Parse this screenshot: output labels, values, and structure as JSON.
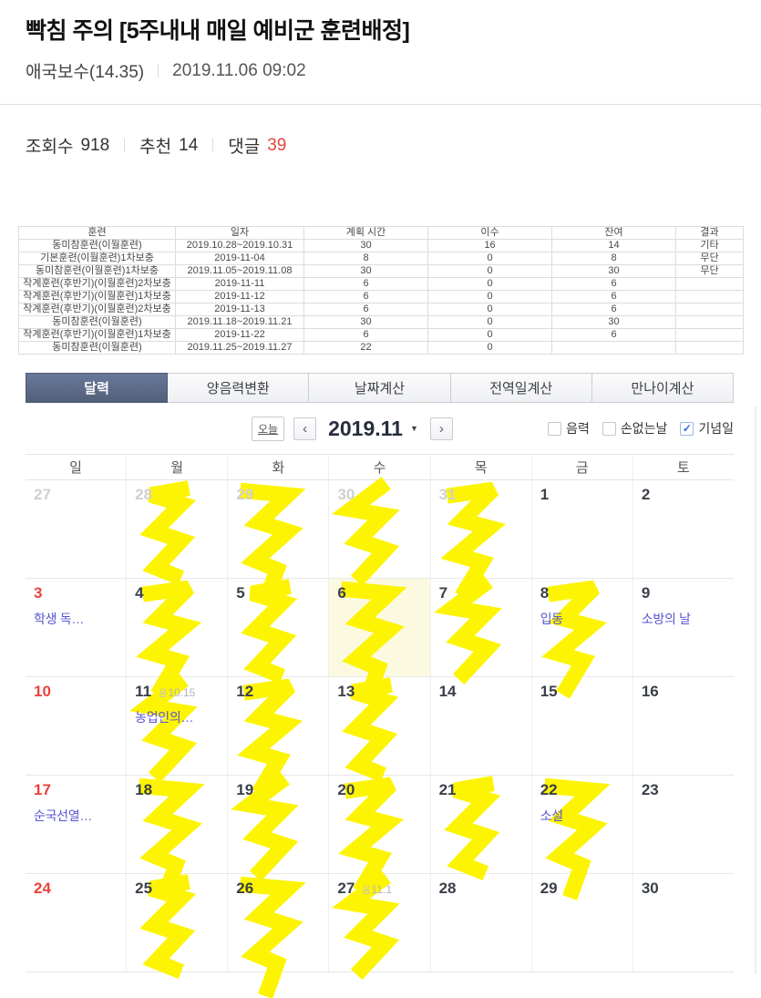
{
  "post": {
    "title": "빡침 주의 [5주내내 매일 예비군 훈련배정]",
    "author": "애국보수(14.35)",
    "timestamp": "2019.11.06 09:02",
    "views_label": "조회수",
    "views": "918",
    "likes_label": "추천",
    "likes": "14",
    "comments_label": "댓글",
    "comments": "39"
  },
  "training_table": {
    "headers": [
      "훈련",
      "일자",
      "계획 시간",
      "이수",
      "잔여",
      "결과"
    ],
    "rows": [
      [
        "동미참훈련(이월훈련)",
        "2019.10.28~2019.10.31",
        "30",
        "16",
        "14",
        "기타"
      ],
      [
        "기본훈련(이월훈련)1차보충",
        "2019-11-04",
        "8",
        "0",
        "8",
        "무단"
      ],
      [
        "동미참훈련(이월훈련)1차보충",
        "2019.11.05~2019.11.08",
        "30",
        "0",
        "30",
        "무단"
      ],
      [
        "작계훈련(후반기)(이월훈련)2차보충",
        "2019-11-11",
        "6",
        "0",
        "6",
        ""
      ],
      [
        "작계훈련(후반기)(이월훈련)1차보충",
        "2019-11-12",
        "6",
        "0",
        "6",
        ""
      ],
      [
        "작계훈련(후반기)(이월훈련)2차보충",
        "2019-11-13",
        "6",
        "0",
        "6",
        ""
      ],
      [
        "동미참훈련(이월훈련)",
        "2019.11.18~2019.11.21",
        "30",
        "0",
        "30",
        ""
      ],
      [
        "작계훈련(후반기)(이월훈련)1차보충",
        "2019-11-22",
        "6",
        "0",
        "6",
        ""
      ],
      [
        "동미참훈련(이월훈련)",
        "2019.11.25~2019.11.27",
        "22",
        "0",
        "",
        ""
      ]
    ]
  },
  "calendar": {
    "tabs": [
      {
        "label": "달력",
        "active": true
      },
      {
        "label": "양음력변환",
        "active": false
      },
      {
        "label": "날짜계산",
        "active": false
      },
      {
        "label": "전역일계산",
        "active": false
      },
      {
        "label": "만나이계산",
        "active": false
      }
    ],
    "today_button": "오늘",
    "month_label": "2019.11",
    "filters": [
      {
        "label": "음력",
        "checked": false
      },
      {
        "label": "손없는날",
        "checked": false
      },
      {
        "label": "기념일",
        "checked": true
      }
    ],
    "day_headers": [
      "일",
      "월",
      "화",
      "수",
      "목",
      "금",
      "토"
    ],
    "lunar_prefix": "음",
    "weeks": [
      [
        {
          "day": "27",
          "muted": true
        },
        {
          "day": "28",
          "muted": true,
          "marked": true
        },
        {
          "day": "29",
          "muted": true,
          "marked": true
        },
        {
          "day": "30",
          "muted": true,
          "marked": true
        },
        {
          "day": "31",
          "muted": true,
          "marked": true
        },
        {
          "day": "1"
        },
        {
          "day": "2"
        }
      ],
      [
        {
          "day": "3",
          "sun": true,
          "label": "학생 독…"
        },
        {
          "day": "4",
          "marked": true
        },
        {
          "day": "5",
          "marked": true
        },
        {
          "day": "6",
          "marked": true,
          "today": true
        },
        {
          "day": "7",
          "marked": true
        },
        {
          "day": "8",
          "marked": true,
          "label": "입동"
        },
        {
          "day": "9",
          "label": "소방의 날"
        }
      ],
      [
        {
          "day": "10",
          "sun": true
        },
        {
          "day": "11",
          "marked": true,
          "lunar": "10.15",
          "label": "농업인의…"
        },
        {
          "day": "12",
          "marked": true
        },
        {
          "day": "13",
          "marked": true
        },
        {
          "day": "14"
        },
        {
          "day": "15"
        },
        {
          "day": "16"
        }
      ],
      [
        {
          "day": "17",
          "sun": true,
          "label": "순국선열…"
        },
        {
          "day": "18",
          "marked": true
        },
        {
          "day": "19",
          "marked": true
        },
        {
          "day": "20",
          "marked": true
        },
        {
          "day": "21",
          "marked": true
        },
        {
          "day": "22",
          "marked": true,
          "label": "소설"
        },
        {
          "day": "23"
        }
      ],
      [
        {
          "day": "24",
          "sun": true
        },
        {
          "day": "25",
          "marked": true
        },
        {
          "day": "26",
          "marked": true
        },
        {
          "day": "27",
          "marked": true,
          "lunar": "11.1"
        },
        {
          "day": "28"
        },
        {
          "day": "29"
        },
        {
          "day": "30"
        }
      ]
    ]
  },
  "icons": {
    "prev_icon": "‹",
    "next_icon": "›",
    "dropdown_icon": "▼",
    "check_icon": "✓"
  },
  "colors": {
    "highlighter": "#fdf403",
    "active_tab": "#5b6b89",
    "sunday": "#e8433c",
    "holiday_text": "#5854d4",
    "comments_count": "#e5443c",
    "today_bg": "#fbf9e0"
  }
}
